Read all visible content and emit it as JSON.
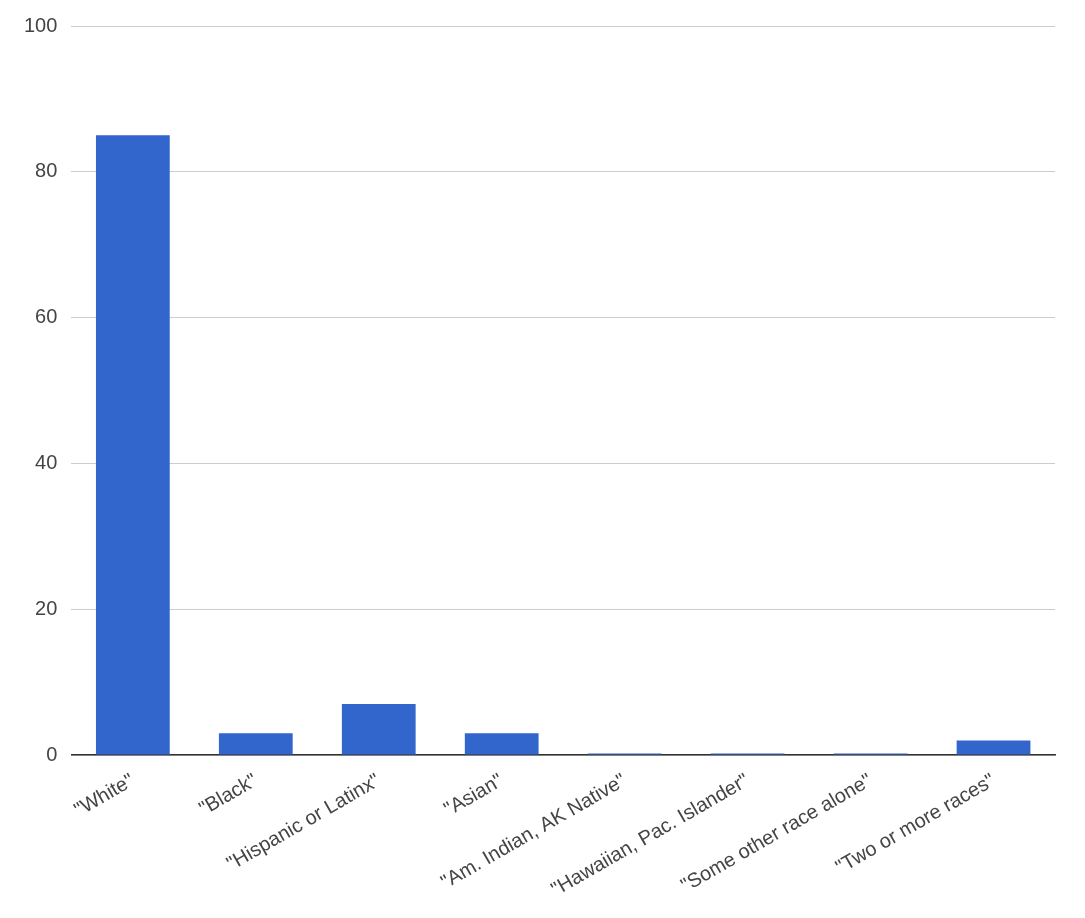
{
  "chart_data": {
    "type": "bar",
    "categories": [
      "\"White\"",
      "\"Black\"",
      "\"Hispanic or Latinx\"",
      "\"Asian\"",
      "\"Am. Indian, AK Native\"",
      "\"Hawaiian, Pac. Islander\"",
      "\"Some other race alone\"",
      "\"Two or more races\""
    ],
    "values": [
      85,
      3,
      7,
      3,
      0.2,
      0.2,
      0.2,
      2
    ],
    "color": "#3366cc",
    "ylim": [
      0,
      100
    ],
    "yticks": [
      0,
      20,
      40,
      60,
      80,
      100
    ],
    "grid": true
  }
}
